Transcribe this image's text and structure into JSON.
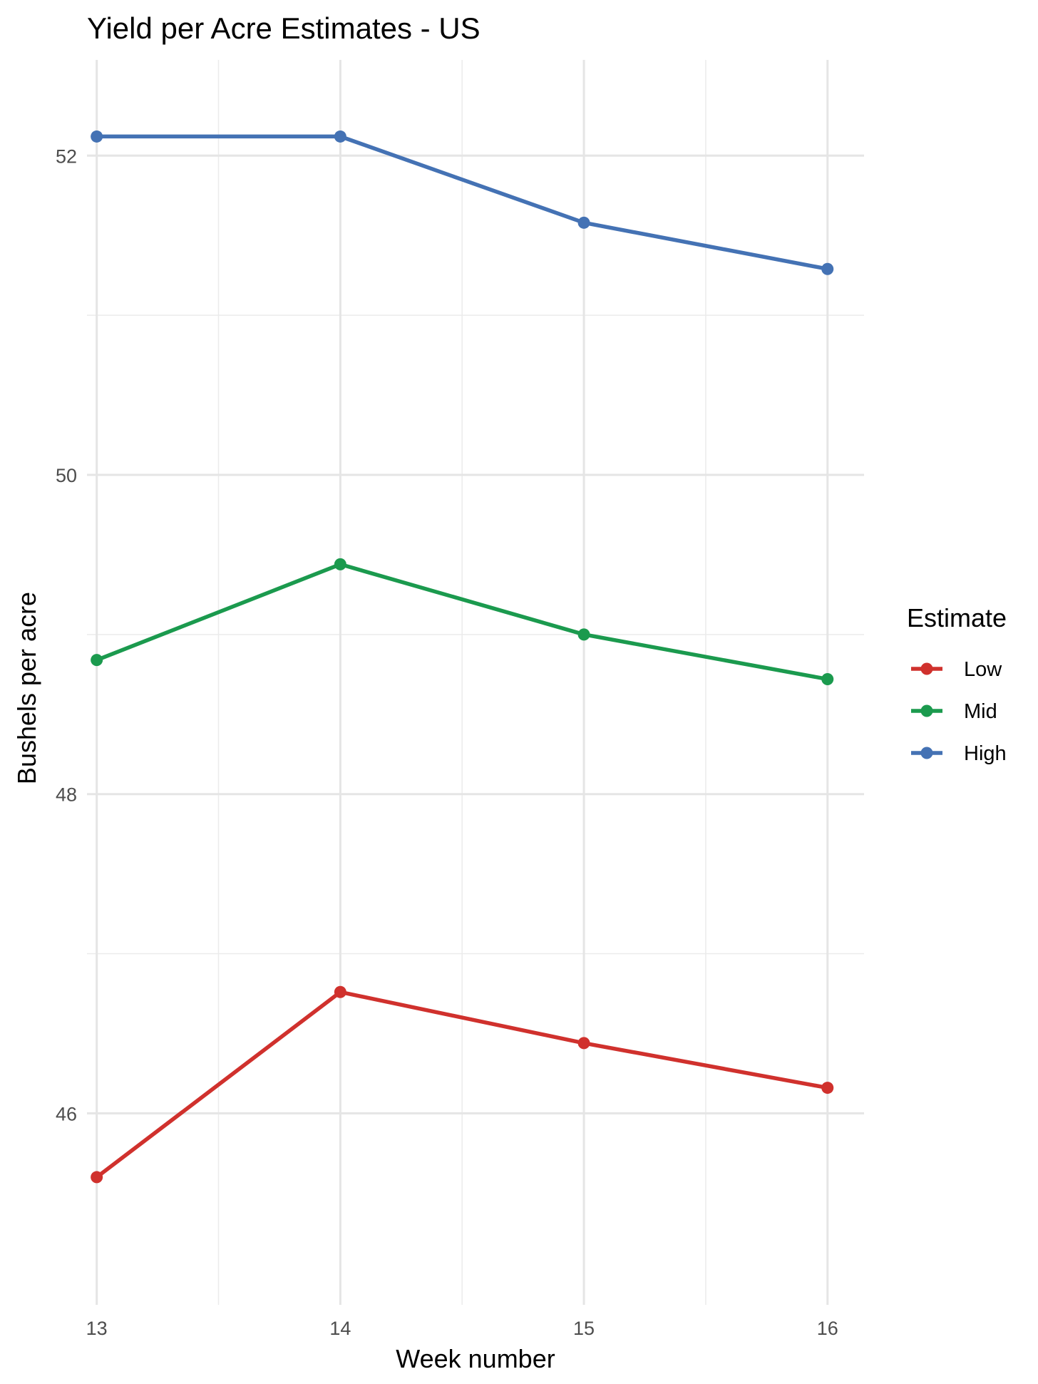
{
  "chart_data": {
    "type": "line",
    "title": "Yield per Acre Estimates - US",
    "xlabel": "Week number",
    "ylabel": "Bushels per acre",
    "x": [
      13,
      14,
      15,
      16
    ],
    "x_ticks": [
      "13",
      "14",
      "15",
      "16"
    ],
    "xlim": [
      12.96,
      16.15
    ],
    "y_ticks": [
      46,
      48,
      50,
      52
    ],
    "ylim": [
      44.8,
      52.6
    ],
    "grid": true,
    "legend": {
      "title": "Estimate",
      "placement": "right"
    },
    "series": [
      {
        "name": "Low",
        "color": "#d0312d",
        "values": [
          45.6,
          46.76,
          46.44,
          46.16
        ]
      },
      {
        "name": "Mid",
        "color": "#1b9a4e",
        "values": [
          48.84,
          49.44,
          49.0,
          48.72
        ]
      },
      {
        "name": "High",
        "color": "#4472b4",
        "values": [
          52.12,
          52.12,
          51.58,
          51.29
        ]
      }
    ]
  }
}
